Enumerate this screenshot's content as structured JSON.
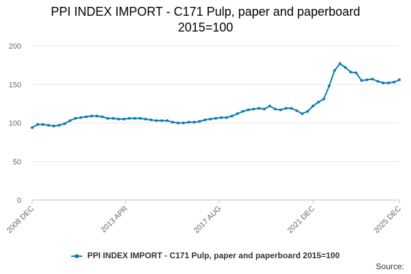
{
  "chart_data": {
    "type": "line",
    "title": "PPI INDEX IMPORT - C171 Pulp, paper and paperboard",
    "subtitle": "2015=100",
    "ylim": [
      0,
      200
    ],
    "yticks": [
      0,
      50,
      100,
      150,
      200
    ],
    "grid": true,
    "legend": "bottom",
    "source_label": "Source:",
    "x_start": "2008 DEC",
    "x_end": "2025 DEC",
    "xticks": [
      "2008 DEC",
      "2013 APR",
      "2017 AUG",
      "2021 DEC",
      "2025 DEC"
    ],
    "series": [
      {
        "name": "PPI INDEX IMPORT - C171 Pulp, paper and paperboard 2015=100",
        "color": "#0b7bb4",
        "x": [
          "2008 DEC",
          "2009 MAR",
          "2009 JUN",
          "2009 SEP",
          "2009 DEC",
          "2010 MAR",
          "2010 JUN",
          "2010 SEP",
          "2010 DEC",
          "2011 MAR",
          "2011 JUN",
          "2011 SEP",
          "2011 DEC",
          "2012 MAR",
          "2012 JUN",
          "2012 SEP",
          "2012 DEC",
          "2013 MAR",
          "2013 JUN",
          "2013 SEP",
          "2013 DEC",
          "2014 MAR",
          "2014 JUN",
          "2014 SEP",
          "2014 DEC",
          "2015 MAR",
          "2015 JUN",
          "2015 SEP",
          "2015 DEC",
          "2016 MAR",
          "2016 JUN",
          "2016 SEP",
          "2016 DEC",
          "2017 MAR",
          "2017 JUN",
          "2017 SEP",
          "2017 DEC",
          "2018 MAR",
          "2018 JUN",
          "2018 SEP",
          "2018 DEC",
          "2019 MAR",
          "2019 JUN",
          "2019 SEP",
          "2019 DEC",
          "2020 MAR",
          "2020 JUN",
          "2020 SEP",
          "2020 DEC",
          "2021 MAR",
          "2021 JUN",
          "2021 SEP",
          "2021 DEC",
          "2022 MAR",
          "2022 JUN",
          "2022 SEP",
          "2022 DEC",
          "2023 MAR",
          "2023 JUN",
          "2023 SEP",
          "2023 DEC",
          "2024 MAR",
          "2024 JUN",
          "2024 SEP",
          "2024 DEC",
          "2025 MAR",
          "2025 JUN",
          "2025 SEP",
          "2025 DEC"
        ],
        "values": [
          94,
          98,
          98,
          97,
          96,
          97,
          99,
          103,
          106,
          107,
          108,
          109,
          109,
          108,
          106,
          106,
          105,
          105,
          106,
          106,
          106,
          105,
          104,
          103,
          103,
          103,
          101,
          100,
          100,
          101,
          101,
          102,
          104,
          105,
          106,
          107,
          107,
          109,
          112,
          115,
          117,
          118,
          119,
          118,
          122,
          118,
          117,
          119,
          119,
          116,
          112,
          115,
          122,
          127,
          131,
          148,
          168,
          177,
          172,
          166,
          165,
          155,
          156,
          157,
          154,
          152,
          152,
          153,
          156
        ]
      }
    ]
  }
}
